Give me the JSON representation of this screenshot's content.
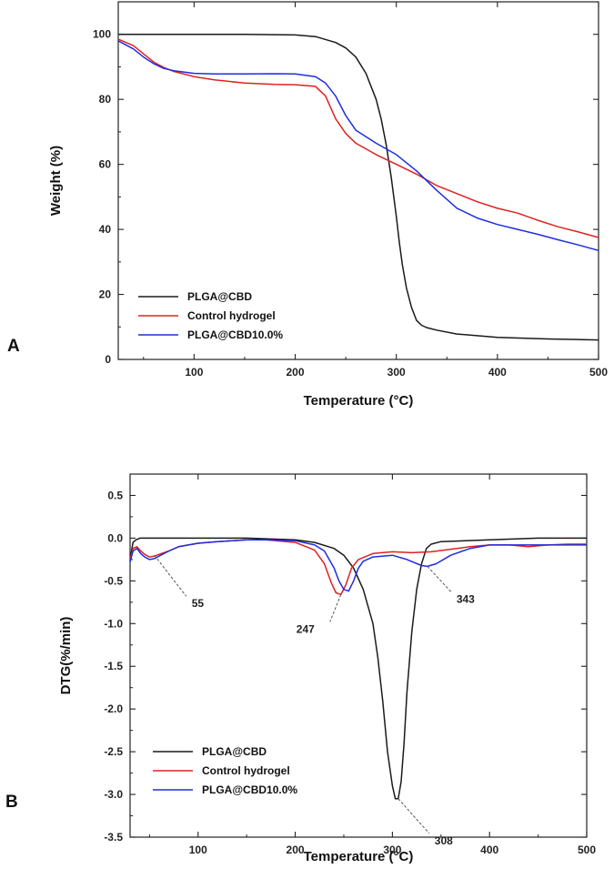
{
  "colors": {
    "PLGA@CBD": "#1a1a1a",
    "Control hydrogel": "#e02020",
    "PLGA@CBD10.0%": "#1f2de0"
  },
  "chart_data": [
    {
      "panel": "A",
      "type": "line",
      "title": "",
      "xlabel": "Temperature (°C)",
      "ylabel": "Weight (%)",
      "xlim": [
        25,
        500
      ],
      "ylim": [
        0,
        110
      ],
      "xticks": [
        100,
        200,
        300,
        400,
        500
      ],
      "yticks": [
        0,
        20,
        40,
        60,
        80,
        100
      ],
      "legend_position": "bottom-left",
      "grid": false,
      "series": [
        {
          "name": "PLGA@CBD",
          "x": [
            25,
            50,
            100,
            150,
            200,
            220,
            240,
            250,
            260,
            270,
            280,
            285,
            290,
            295,
            300,
            303,
            306,
            310,
            315,
            320,
            325,
            330,
            340,
            360,
            400,
            450,
            500
          ],
          "y": [
            100,
            100,
            100,
            100,
            99.8,
            99.3,
            97.5,
            95.8,
            93,
            88,
            80,
            74,
            66,
            56,
            44,
            36,
            29,
            22,
            16,
            12,
            10.5,
            9.8,
            9,
            7.8,
            6.8,
            6.3,
            6
          ]
        },
        {
          "name": "Control hydrogel",
          "x": [
            25,
            40,
            50,
            60,
            70,
            80,
            100,
            120,
            150,
            180,
            200,
            220,
            230,
            240,
            250,
            260,
            280,
            300,
            320,
            340,
            360,
            380,
            400,
            420,
            440,
            460,
            480,
            500
          ],
          "y": [
            98.5,
            96.5,
            94,
            91.5,
            89.8,
            88.6,
            87,
            86,
            85,
            84.6,
            84.5,
            84,
            81,
            74,
            69.5,
            66.5,
            63,
            60,
            57,
            53.5,
            51,
            48.5,
            46.5,
            45,
            42.8,
            40.8,
            39.2,
            37.5
          ]
        },
        {
          "name": "PLGA@CBD10.0%",
          "x": [
            25,
            40,
            50,
            60,
            70,
            80,
            100,
            120,
            150,
            180,
            200,
            220,
            230,
            240,
            250,
            260,
            280,
            300,
            320,
            340,
            360,
            380,
            400,
            420,
            440,
            460,
            480,
            500
          ],
          "y": [
            98,
            95.5,
            93,
            91,
            89.5,
            88.8,
            88,
            87.8,
            87.8,
            87.9,
            87.8,
            87,
            85,
            81,
            75,
            70.5,
            66.5,
            63,
            58,
            52,
            46.5,
            43.5,
            41.5,
            40,
            38.5,
            36.8,
            35.2,
            33.5
          ]
        }
      ]
    },
    {
      "panel": "B",
      "type": "line",
      "title": "",
      "xlabel": "Temperature (°C)",
      "ylabel": "DTG(%/min)",
      "xlim": [
        30,
        500
      ],
      "ylim": [
        -3.5,
        0.75
      ],
      "xticks": [
        100,
        200,
        300,
        400,
        500
      ],
      "yticks": [
        0.5,
        0.0,
        -0.5,
        -1.0,
        -1.5,
        -2.0,
        -2.5,
        -3.0,
        -3.5
      ],
      "ytick_labels": [
        "0.5",
        "0.0",
        "-0.5",
        "-1.0",
        "-1.5",
        "-2.0",
        "-2.5",
        "-3.0",
        "-3.5"
      ],
      "legend_position": "bottom-left",
      "grid": false,
      "annotations": [
        {
          "label": "55",
          "x": 55,
          "y": -0.2
        },
        {
          "label": "247",
          "x": 247,
          "y": -0.66
        },
        {
          "label": "308",
          "x": 306,
          "y": -3.05
        },
        {
          "label": "343",
          "x": 336,
          "y": -0.33
        }
      ],
      "series": [
        {
          "name": "PLGA@CBD",
          "x": [
            30,
            33,
            36,
            40,
            60,
            100,
            150,
            200,
            220,
            240,
            250,
            260,
            270,
            280,
            285,
            290,
            295,
            300,
            303,
            306,
            309,
            312,
            315,
            320,
            325,
            330,
            335,
            340,
            350,
            400,
            450,
            500
          ],
          "y": [
            -0.25,
            -0.05,
            -0.02,
            0.0,
            0.0,
            0.0,
            0.0,
            -0.02,
            -0.05,
            -0.12,
            -0.2,
            -0.35,
            -0.6,
            -1.0,
            -1.4,
            -1.9,
            -2.5,
            -2.9,
            -3.05,
            -3.05,
            -2.85,
            -2.4,
            -1.8,
            -1.1,
            -0.6,
            -0.3,
            -0.12,
            -0.07,
            -0.04,
            -0.02,
            0.0,
            0.0
          ]
        },
        {
          "name": "Control hydrogel",
          "x": [
            30,
            33,
            37,
            41,
            45,
            50,
            55,
            60,
            70,
            80,
            100,
            120,
            150,
            170,
            200,
            220,
            230,
            237,
            242,
            247,
            252,
            258,
            265,
            280,
            300,
            320,
            340,
            360,
            380,
            400,
            420,
            440,
            460,
            480,
            500
          ],
          "y": [
            -0.25,
            -0.12,
            -0.1,
            -0.15,
            -0.19,
            -0.22,
            -0.21,
            -0.19,
            -0.15,
            -0.1,
            -0.06,
            -0.04,
            -0.02,
            -0.02,
            -0.05,
            -0.14,
            -0.3,
            -0.52,
            -0.64,
            -0.66,
            -0.55,
            -0.35,
            -0.25,
            -0.18,
            -0.16,
            -0.17,
            -0.16,
            -0.13,
            -0.1,
            -0.08,
            -0.08,
            -0.1,
            -0.08,
            -0.07,
            -0.07
          ]
        },
        {
          "name": "PLGA@CBD10.0%",
          "x": [
            30,
            33,
            37,
            41,
            45,
            50,
            55,
            60,
            70,
            80,
            100,
            120,
            150,
            170,
            200,
            220,
            230,
            240,
            245,
            250,
            255,
            260,
            265,
            270,
            280,
            300,
            315,
            330,
            336,
            345,
            360,
            380,
            400,
            450,
            500
          ],
          "y": [
            -0.28,
            -0.15,
            -0.12,
            -0.18,
            -0.22,
            -0.25,
            -0.24,
            -0.21,
            -0.15,
            -0.1,
            -0.06,
            -0.04,
            -0.02,
            -0.02,
            -0.03,
            -0.08,
            -0.15,
            -0.35,
            -0.5,
            -0.6,
            -0.62,
            -0.5,
            -0.35,
            -0.27,
            -0.22,
            -0.2,
            -0.25,
            -0.32,
            -0.33,
            -0.3,
            -0.2,
            -0.12,
            -0.08,
            -0.08,
            -0.08
          ]
        }
      ]
    }
  ]
}
